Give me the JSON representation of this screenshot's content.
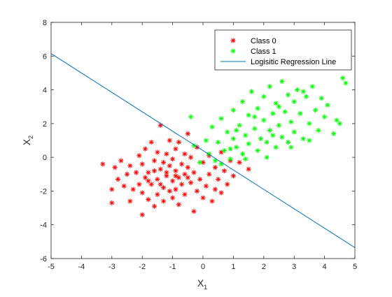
{
  "chart_data": {
    "type": "scatter",
    "title": "",
    "xlabel": "X",
    "xlabel_sub": "1",
    "ylabel": "X",
    "ylabel_sub": "2",
    "xlim": [
      -5,
      5
    ],
    "ylim": [
      -6,
      8
    ],
    "xticks": [
      -5,
      -4,
      -3,
      -2,
      -1,
      0,
      1,
      2,
      3,
      4,
      5
    ],
    "yticks": [
      -6,
      -4,
      -2,
      0,
      2,
      4,
      6,
      8
    ],
    "grid": false,
    "legend_position": "top-right",
    "legend": [
      {
        "label": "Class 0",
        "marker": "*",
        "color": "#ff0000"
      },
      {
        "label": "Class 1",
        "marker": "*",
        "color": "#00ff00"
      },
      {
        "label": "Logisitic Regression Line",
        "marker": "line",
        "color": "#0072bd"
      }
    ],
    "colors": {
      "class0": "#ff0000",
      "class1": "#00ff00",
      "line": "#0072bd",
      "axis": "#262626"
    },
    "line": {
      "x": [
        -5,
        5
      ],
      "y": [
        6.15,
        -5.35
      ]
    },
    "series": [
      {
        "name": "Class 0",
        "marker": "*",
        "points": [
          [
            -3.3,
            -0.4
          ],
          [
            -3.0,
            -1.9
          ],
          [
            -3.0,
            -2.7
          ],
          [
            -2.9,
            -0.6
          ],
          [
            -2.8,
            -1.3
          ],
          [
            -2.7,
            -0.2
          ],
          [
            -2.6,
            -1.7
          ],
          [
            -2.5,
            -1.0
          ],
          [
            -2.4,
            -2.6
          ],
          [
            -2.4,
            -0.5
          ],
          [
            -2.3,
            -1.9
          ],
          [
            -2.2,
            -0.9
          ],
          [
            -2.1,
            0.1
          ],
          [
            -2.1,
            -1.6
          ],
          [
            -2.0,
            -3.4
          ],
          [
            -2.0,
            -2.1
          ],
          [
            -2.0,
            -0.4
          ],
          [
            -1.9,
            -1.2
          ],
          [
            -1.9,
            0.5
          ],
          [
            -1.8,
            -2.5
          ],
          [
            -1.8,
            -0.9
          ],
          [
            -1.7,
            0.9
          ],
          [
            -1.7,
            -1.6
          ],
          [
            -1.6,
            -0.2
          ],
          [
            -1.6,
            -2.9
          ],
          [
            -1.5,
            -1.3
          ],
          [
            -1.5,
            0.3
          ],
          [
            -1.5,
            -2.2
          ],
          [
            -1.4,
            -0.7
          ],
          [
            -1.4,
            1.9
          ],
          [
            -1.3,
            -1.8
          ],
          [
            -1.3,
            -0.3
          ],
          [
            -1.3,
            -2.6
          ],
          [
            -1.2,
            0.2
          ],
          [
            -1.2,
            -1.1
          ],
          [
            -1.1,
            -0.5
          ],
          [
            -1.1,
            -2.0
          ],
          [
            -1.1,
            1.0
          ],
          [
            -1.0,
            -1.4
          ],
          [
            -1.0,
            -0.1
          ],
          [
            -1.0,
            -2.4
          ],
          [
            -0.9,
            -0.8
          ],
          [
            -0.9,
            0.5
          ],
          [
            -0.9,
            -1.9
          ],
          [
            -0.8,
            -1.2
          ],
          [
            -0.8,
            0.9
          ],
          [
            -0.8,
            -2.8
          ],
          [
            -0.7,
            -0.4
          ],
          [
            -0.7,
            -1.6
          ],
          [
            -0.6,
            0.2
          ],
          [
            -0.6,
            -1.0
          ],
          [
            -0.6,
            -2.2
          ],
          [
            -0.5,
            1.4
          ],
          [
            -0.5,
            -0.6
          ],
          [
            -0.4,
            -1.5
          ],
          [
            -0.4,
            0.0
          ],
          [
            -0.3,
            -3.2
          ],
          [
            -0.3,
            -0.9
          ],
          [
            -0.2,
            -2.0
          ],
          [
            -0.2,
            0.6
          ],
          [
            -0.1,
            -1.3
          ],
          [
            0.0,
            -0.3
          ],
          [
            0.0,
            -2.4
          ],
          [
            0.1,
            -1.7
          ],
          [
            0.2,
            0.1
          ],
          [
            0.2,
            -1.0
          ],
          [
            0.3,
            -2.6
          ],
          [
            0.4,
            -0.6
          ],
          [
            0.4,
            -1.9
          ],
          [
            0.5,
            -1.3
          ],
          [
            0.6,
            0.3
          ],
          [
            0.6,
            -2.1
          ],
          [
            0.7,
            -0.8
          ],
          [
            0.8,
            -1.6
          ],
          [
            0.9,
            -0.2
          ],
          [
            1.0,
            -1.1
          ],
          [
            1.2,
            -0.3
          ],
          [
            1.5,
            -0.7
          ],
          [
            -1.6,
            -0.8
          ],
          [
            -1.2,
            -0.9
          ],
          [
            -0.9,
            -1.1
          ],
          [
            -0.5,
            -1.2
          ],
          [
            -1.8,
            -1.4
          ],
          [
            -1.4,
            -1.6
          ]
        ]
      },
      {
        "name": "Class 1",
        "marker": "*",
        "points": [
          [
            -0.4,
            2.4
          ],
          [
            -0.3,
            0.7
          ],
          [
            -0.1,
            -0.3
          ],
          [
            0.1,
            1.0
          ],
          [
            0.2,
            0.2
          ],
          [
            0.3,
            1.8
          ],
          [
            0.4,
            -0.2
          ],
          [
            0.5,
            0.9
          ],
          [
            0.6,
            2.3
          ],
          [
            0.7,
            0.4
          ],
          [
            0.8,
            1.5
          ],
          [
            0.9,
            -0.1
          ],
          [
            1.0,
            1.1
          ],
          [
            1.0,
            2.8
          ],
          [
            1.1,
            0.6
          ],
          [
            1.2,
            1.9
          ],
          [
            1.3,
            0.2
          ],
          [
            1.3,
            3.3
          ],
          [
            1.4,
            1.3
          ],
          [
            1.5,
            2.5
          ],
          [
            1.5,
            0.8
          ],
          [
            1.6,
            3.9
          ],
          [
            1.7,
            1.7
          ],
          [
            1.8,
            0.4
          ],
          [
            1.8,
            2.9
          ],
          [
            1.9,
            1.1
          ],
          [
            2.0,
            2.2
          ],
          [
            2.0,
            3.6
          ],
          [
            2.1,
            0.9
          ],
          [
            2.2,
            1.6
          ],
          [
            2.2,
            4.2
          ],
          [
            2.3,
            2.6
          ],
          [
            2.4,
            0.6
          ],
          [
            2.4,
            3.2
          ],
          [
            2.5,
            1.9
          ],
          [
            2.6,
            4.5
          ],
          [
            2.6,
            1.2
          ],
          [
            2.7,
            2.7
          ],
          [
            2.8,
            3.7
          ],
          [
            2.8,
            0.9
          ],
          [
            2.9,
            2.1
          ],
          [
            3.0,
            3.3
          ],
          [
            3.0,
            1.5
          ],
          [
            3.1,
            4.0
          ],
          [
            3.2,
            2.6
          ],
          [
            3.3,
            1.1
          ],
          [
            3.4,
            3.6
          ],
          [
            3.5,
            2.0
          ],
          [
            3.6,
            4.2
          ],
          [
            3.7,
            2.8
          ],
          [
            3.8,
            1.6
          ],
          [
            3.9,
            3.5
          ],
          [
            4.0,
            2.4
          ],
          [
            4.1,
            3.1
          ],
          [
            4.3,
            1.4
          ],
          [
            4.4,
            2.2
          ],
          [
            4.5,
            2.0
          ],
          [
            4.6,
            4.7
          ],
          [
            4.7,
            4.4
          ],
          [
            0.6,
            -0.4
          ],
          [
            1.4,
            -0.1
          ],
          [
            2.1,
            0.0
          ],
          [
            2.9,
            0.6
          ],
          [
            3.5,
            1.0
          ],
          [
            1.7,
            2.4
          ],
          [
            2.5,
            3.0
          ],
          [
            3.3,
            3.9
          ],
          [
            1.1,
            1.6
          ],
          [
            2.3,
            1.3
          ],
          [
            0.9,
            0.5
          ]
        ]
      }
    ]
  }
}
